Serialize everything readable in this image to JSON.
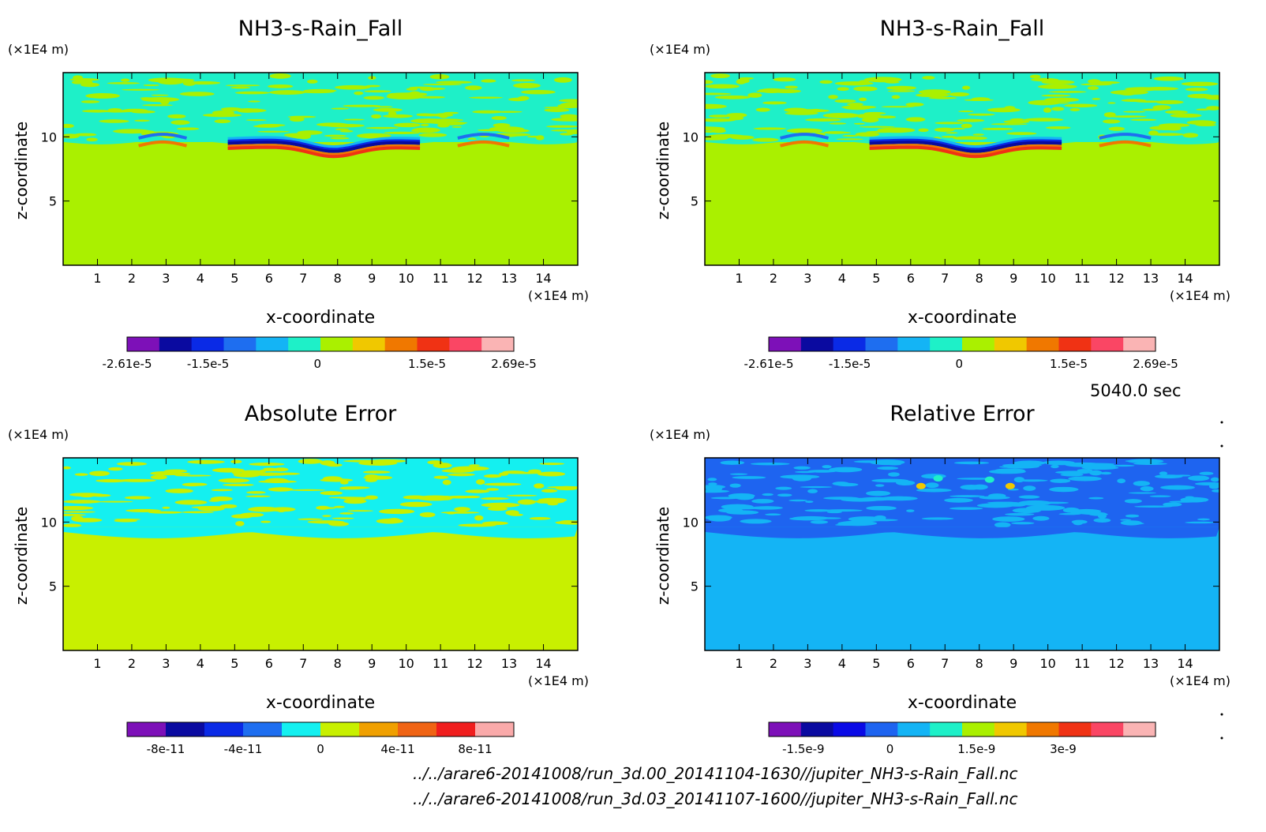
{
  "chart_data": [
    {
      "type": "heatmap",
      "title": "NH3-s-Rain_Fall",
      "xlabel": "x-coordinate",
      "ylabel": "z-coordinate",
      "x_unit": "(×1E4 m)",
      "y_unit": "(×1E4 m)",
      "x_ticks": [
        1,
        2,
        3,
        4,
        5,
        6,
        7,
        8,
        9,
        10,
        11,
        12,
        13,
        14
      ],
      "y_ticks": [
        5,
        10
      ],
      "xlim": [
        0,
        15
      ],
      "ylim": [
        0,
        15
      ],
      "colorbar": {
        "colors": [
          "#7d10b8",
          "#0a0aa0",
          "#0a2ae6",
          "#1e6ef0",
          "#14b4f5",
          "#1ef0c8",
          "#aaf000",
          "#f0c800",
          "#f07800",
          "#f03214",
          "#fa4664",
          "#fab4b4"
        ],
        "tick_labels": [
          "-2.61e-5",
          "-1.5e-5",
          "0",
          "1.5e-5",
          "2.69e-5"
        ],
        "tick_values": [
          -2.61e-05,
          -1.5e-05,
          0,
          1.5e-05,
          2.69e-05
        ],
        "range": [
          -2.61e-05,
          2.69e-05
        ]
      },
      "background_color": "#aaf000",
      "band_color": "#1ef0c8"
    },
    {
      "type": "heatmap",
      "title": "NH3-s-Rain_Fall",
      "xlabel": "x-coordinate",
      "ylabel": "z-coordinate",
      "x_unit": "(×1E4 m)",
      "y_unit": "(×1E4 m)",
      "x_ticks": [
        1,
        2,
        3,
        4,
        5,
        6,
        7,
        8,
        9,
        10,
        11,
        12,
        13,
        14
      ],
      "y_ticks": [
        5,
        10
      ],
      "xlim": [
        0,
        15
      ],
      "ylim": [
        0,
        15
      ],
      "colorbar": {
        "colors": [
          "#7d10b8",
          "#0a0aa0",
          "#0a2ae6",
          "#1e6ef0",
          "#14b4f5",
          "#1ef0c8",
          "#aaf000",
          "#f0c800",
          "#f07800",
          "#f03214",
          "#fa4664",
          "#fab4b4"
        ],
        "tick_labels": [
          "-2.61e-5",
          "-1.5e-5",
          "0",
          "1.5e-5",
          "2.69e-5"
        ],
        "tick_values": [
          -2.61e-05,
          -1.5e-05,
          0,
          1.5e-05,
          2.69e-05
        ],
        "range": [
          -2.61e-05,
          2.69e-05
        ]
      },
      "background_color": "#aaf000",
      "band_color": "#1ef0c8"
    },
    {
      "type": "heatmap",
      "title": "Absolute Error",
      "xlabel": "x-coordinate",
      "ylabel": "z-coordinate",
      "x_unit": "(×1E4 m)",
      "y_unit": "(×1E4 m)",
      "x_ticks": [
        1,
        2,
        3,
        4,
        5,
        6,
        7,
        8,
        9,
        10,
        11,
        12,
        13,
        14
      ],
      "y_ticks": [
        5,
        10
      ],
      "xlim": [
        0,
        15
      ],
      "ylim": [
        0,
        15
      ],
      "colorbar": {
        "colors": [
          "#7d10b8",
          "#0a0aa0",
          "#0a2ae6",
          "#1e6ef0",
          "#14f0f0",
          "#c8f000",
          "#f0a000",
          "#f06414",
          "#f01e1e",
          "#faaaaa"
        ],
        "tick_labels": [
          "-8e-11",
          "-4e-11",
          "0",
          "4e-11",
          "8e-11"
        ],
        "tick_values": [
          -8e-11,
          -4e-11,
          0,
          4e-11,
          8e-11
        ],
        "range": [
          -1e-10,
          1e-10
        ]
      },
      "background_color": "#c8f000",
      "band_color": "#14f0f0"
    },
    {
      "type": "heatmap",
      "title": "Relative Error",
      "xlabel": "x-coordinate",
      "ylabel": "z-coordinate",
      "x_unit": "(×1E4 m)",
      "y_unit": "(×1E4 m)",
      "x_ticks": [
        1,
        2,
        3,
        4,
        5,
        6,
        7,
        8,
        9,
        10,
        11,
        12,
        13,
        14
      ],
      "y_ticks": [
        5,
        10
      ],
      "xlim": [
        0,
        15
      ],
      "ylim": [
        0,
        15
      ],
      "colorbar": {
        "colors": [
          "#7d10b8",
          "#0a0aa0",
          "#0a0ae6",
          "#1e64f0",
          "#14b4f5",
          "#1ef0c8",
          "#aaf000",
          "#f0c800",
          "#f07800",
          "#f03214",
          "#fa4664",
          "#fab4b4"
        ],
        "tick_labels": [
          "-1.5e-9",
          "0",
          "1.5e-9",
          "3e-9"
        ],
        "tick_values": [
          -1.5e-09,
          0,
          1.5e-09,
          3e-09
        ],
        "range": [
          -2.1e-09,
          4.6e-09
        ]
      },
      "background_color": "#14b4f5",
      "band_color": "#1e64f0"
    }
  ],
  "time_label": "5040.0 sec",
  "footer": {
    "file1": "../../arare6-20141008/run_3d.00_20141104-1630//jupiter_NH3-s-Rain_Fall.nc",
    "file2": "../../arare6-20141008/run_3d.03_20141107-1600//jupiter_NH3-s-Rain_Fall.nc"
  }
}
